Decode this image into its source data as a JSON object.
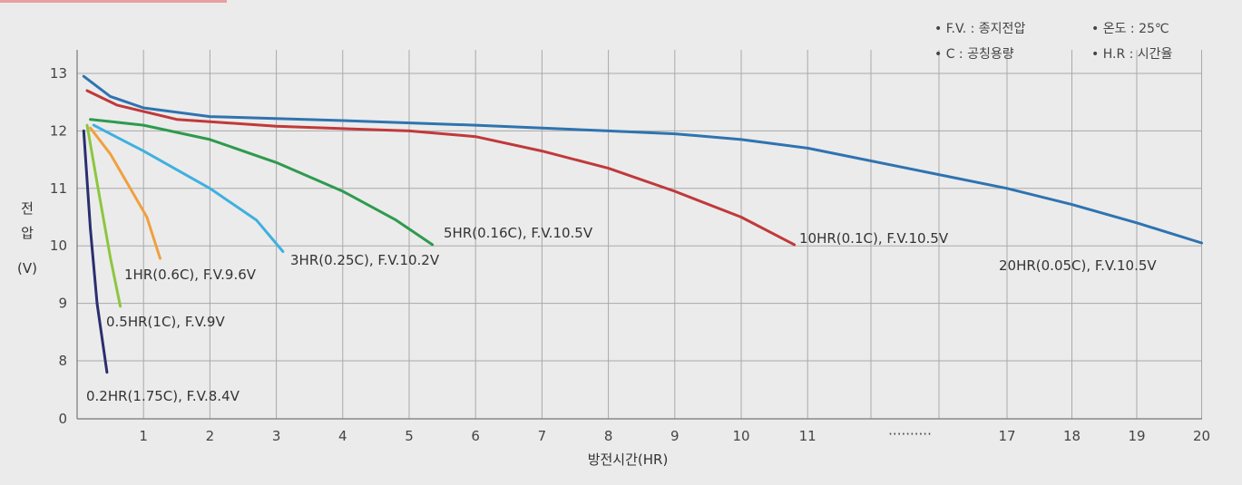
{
  "chart_data": {
    "type": "line",
    "xlabel": "방전시간(HR)",
    "ylabel_chars": [
      "전",
      "압",
      "(V)"
    ],
    "y_ticks": [
      "0",
      "8",
      "9",
      "10",
      "11",
      "12",
      "13"
    ],
    "x_ticks": [
      "1",
      "2",
      "3",
      "4",
      "5",
      "6",
      "7",
      "8",
      "9",
      "10",
      "11",
      "17",
      "18",
      "19",
      "20"
    ],
    "axis_break": "··········",
    "legend": [
      "• F.V. : 종지전압",
      "• 온도 : 25℃",
      "• C : 공칭용량",
      "• H.R : 시간율"
    ],
    "grid": true,
    "series": [
      {
        "name": "0.2HR(1.75C), F.V.8.4V",
        "color": "#2b2e6e",
        "x": [
          0.1,
          0.2,
          0.3,
          0.45
        ],
        "y": [
          12.0,
          10.3,
          9.0,
          7.8
        ]
      },
      {
        "name": "0.5HR(1C), F.V.9V",
        "color": "#8dc63f",
        "x": [
          0.15,
          0.3,
          0.5,
          0.65
        ],
        "y": [
          12.1,
          11.1,
          9.8,
          8.95
        ]
      },
      {
        "name": "1HR(0.6C), F.V.9.6V",
        "color": "#f0a040",
        "x": [
          0.2,
          0.5,
          0.8,
          1.05,
          1.25
        ],
        "y": [
          12.05,
          11.6,
          11.0,
          10.5,
          9.78
        ]
      },
      {
        "name": "3HR(0.25C), F.V.10.2V",
        "color": "#3fb0e0",
        "x": [
          0.25,
          1.0,
          2.0,
          2.7,
          3.1
        ],
        "y": [
          12.1,
          11.65,
          11.0,
          10.45,
          9.9
        ]
      },
      {
        "name": "5HR(0.16C), F.V.10.5V",
        "color": "#2e9a4e",
        "x": [
          0.2,
          1.0,
          2.0,
          3.0,
          4.0,
          4.8,
          5.35
        ],
        "y": [
          12.2,
          12.1,
          11.85,
          11.45,
          10.95,
          10.45,
          10.02
        ]
      },
      {
        "name": "10HR(0.1C), F.V.10.5V",
        "color": "#c0393b",
        "x": [
          0.15,
          0.6,
          1.5,
          3.0,
          5.0,
          6.0,
          7.0,
          8.0,
          9.0,
          10.0,
          10.8
        ],
        "y": [
          12.7,
          12.45,
          12.2,
          12.08,
          12.0,
          11.9,
          11.65,
          11.35,
          10.95,
          10.5,
          10.02
        ]
      },
      {
        "name": "20HR(0.05C), F.V.10.5V",
        "color": "#2f73b0",
        "x": [
          0.1,
          0.5,
          1.0,
          2.0,
          4.0,
          6.0,
          8.0,
          9.0,
          10.0,
          11.0,
          17.0,
          18.0,
          19.0,
          20.0
        ],
        "y": [
          12.95,
          12.6,
          12.4,
          12.25,
          12.18,
          12.1,
          12.0,
          11.95,
          11.85,
          11.7,
          11.0,
          10.72,
          10.4,
          10.05
        ]
      }
    ]
  }
}
